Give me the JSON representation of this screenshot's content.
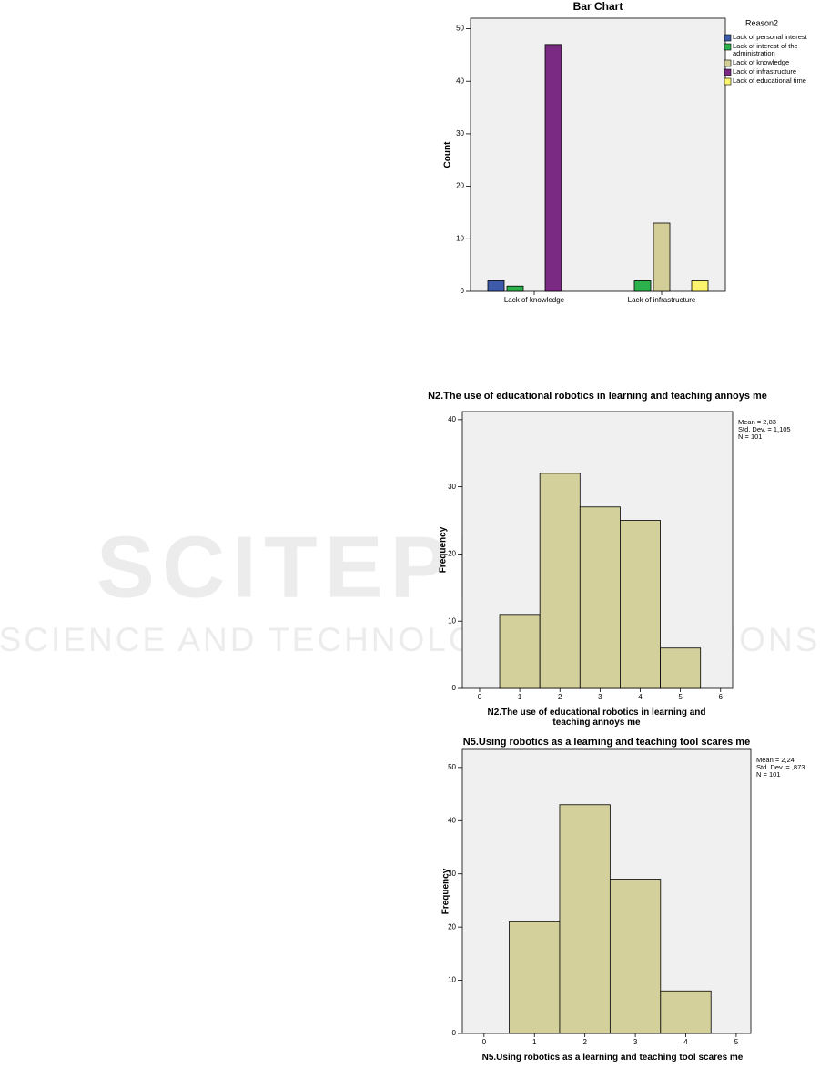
{
  "watermark": {
    "title": "SCITEPRESS",
    "subtitle": "SCIENCE AND TECHNOLOGY PUBLICATIONS"
  },
  "chart_data": [
    {
      "type": "bar",
      "title": "Bar Chart",
      "ylabel": "Count",
      "categories": [
        "Lack of knowledge",
        "Lack of infrastructure"
      ],
      "legend_title": "Reason2",
      "series": [
        {
          "name": "Lack of personal interest",
          "color": "#3e5ba9",
          "values": [
            2,
            null
          ]
        },
        {
          "name": "Lack of interest of the administration",
          "color": "#2bb24c",
          "values": [
            1,
            2
          ]
        },
        {
          "name": "Lack of knowledge",
          "color": "#d3ce97",
          "values": [
            null,
            13
          ]
        },
        {
          "name": "Lack of infrastructure",
          "color": "#7a2a82",
          "values": [
            47,
            null
          ]
        },
        {
          "name": "Lack of educational time",
          "color": "#fbf46f",
          "values": [
            null,
            2
          ]
        }
      ],
      "ylim": [
        0,
        52
      ],
      "yticks": [
        0,
        10,
        20,
        30,
        40,
        50
      ]
    },
    {
      "type": "histogram",
      "title": "N2.The use of educational robotics in learning and teaching annoys me",
      "xlabel": "N2.The use of educational robotics in learning and teaching annoys me",
      "ylabel": "Frequency",
      "bins": [
        0.5,
        1.5,
        2.5,
        3.5,
        4.5,
        5.5
      ],
      "values": [
        11,
        32,
        27,
        25,
        6
      ],
      "color": "#d4d09b",
      "stats": [
        "Mean = 2,83",
        "Std. Dev. = 1,105",
        "N = 101"
      ],
      "xlim": [
        -0.43,
        6.3
      ],
      "xticks": [
        0,
        1,
        2,
        3,
        4,
        5,
        6
      ],
      "ylim": [
        0,
        41.2
      ],
      "yticks": [
        0,
        10,
        20,
        30,
        40
      ]
    },
    {
      "type": "histogram",
      "title": "N5.Using robotics as a learning and teaching tool scares me",
      "xlabel": "N5.Using robotics as a learning and teaching tool scares me",
      "ylabel": "Frequency",
      "bins": [
        0.5,
        1.5,
        2.5,
        3.5,
        4.5
      ],
      "values": [
        21,
        43,
        29,
        8
      ],
      "color": "#d4d09b",
      "stats": [
        "Mean = 2,24",
        "Std. Dev. = ,873",
        "N = 101"
      ],
      "xlim": [
        -0.43,
        5.29
      ],
      "xticks": [
        0,
        1,
        2,
        3,
        4,
        5
      ],
      "ylim": [
        0,
        53.4
      ],
      "yticks": [
        0,
        10,
        20,
        30,
        40,
        50
      ]
    }
  ]
}
